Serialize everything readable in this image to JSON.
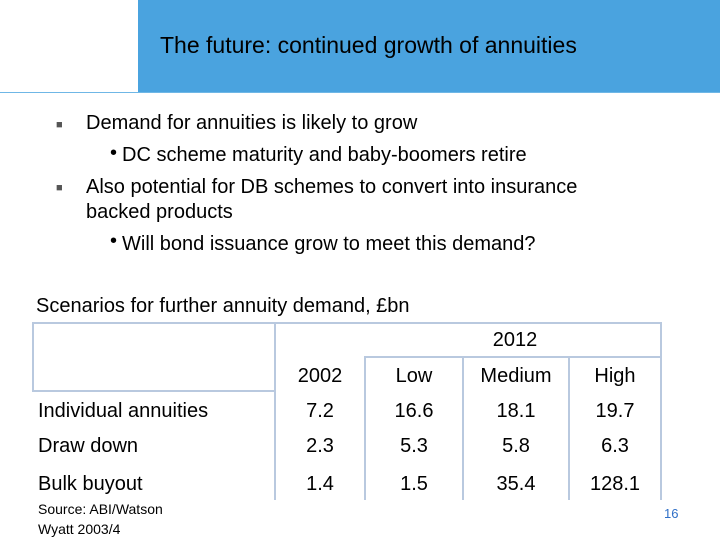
{
  "slide": {
    "title": "The future: continued growth of annuities",
    "bullets": [
      {
        "level": 1,
        "text": "Demand for annuities is likely to grow"
      },
      {
        "level": 2,
        "text": "DC scheme maturity and baby-boomers retire"
      },
      {
        "level": 1,
        "text": "Also potential for DB schemes to convert into insurance"
      },
      {
        "level": 1,
        "text": "backed products",
        "continuation": true
      },
      {
        "level": 2,
        "text": "Will bond issuance grow to meet this demand?"
      }
    ],
    "table_caption": "Scenarios for further annuity demand, £bn",
    "table": {
      "group_header": "2012",
      "col_headers": [
        "2002",
        "Low",
        "Medium",
        "High"
      ],
      "rows": [
        {
          "label": "Individual annuities",
          "values": [
            "7.2",
            "16.6",
            "18.1",
            "19.7"
          ]
        },
        {
          "label": "Draw down",
          "values": [
            "2.3",
            "5.3",
            "5.8",
            "6.3"
          ]
        },
        {
          "label": "Bulk buyout",
          "values": [
            "1.4",
            "1.5",
            "35.4",
            "128.1"
          ]
        }
      ]
    },
    "source_line1": "Source: ABI/Watson",
    "source_line2": "Wyatt 2003/4",
    "page_number": "16"
  }
}
